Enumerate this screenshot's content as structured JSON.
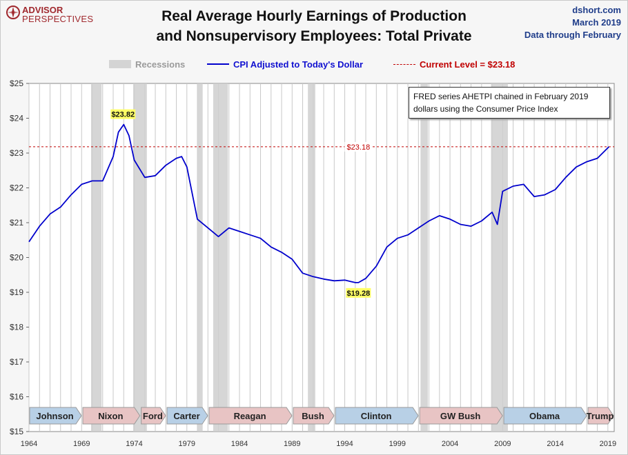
{
  "header": {
    "logo_line1": "ADVISOR",
    "logo_line2": "PERSPECTIVES",
    "title_line1": "Real Average Hourly Earnings of Production",
    "title_line2": "and Nonsupervisory Employees: Total Private",
    "source_line1": "dshort.com",
    "source_line2": "March 2019",
    "source_line3": "Data through February"
  },
  "legend": {
    "recessions": "Recessions",
    "cpi": "CPI Adjusted to Today's Dollar",
    "current": "Current Level = $23.18"
  },
  "note": "FRED series AHETPI chained in February 2019  dollars using the Consumer Price Index",
  "colors": {
    "line": "#0000cc",
    "recession": "#cfcfcf",
    "current": "#c00000",
    "pres_dem": "#b8d0e6",
    "pres_rep": "#e8c4c4"
  },
  "chart_data": {
    "type": "line",
    "title": "Real Average Hourly Earnings of Production and Nonsupervisory Employees: Total Private",
    "xlim": [
      1964,
      2019.6
    ],
    "ylim": [
      15,
      25
    ],
    "x_ticks": [
      1964,
      1969,
      1974,
      1979,
      1984,
      1989,
      1994,
      1999,
      2004,
      2009,
      2014,
      2019
    ],
    "x_tick_labels": [
      "1964",
      "1969",
      "1974",
      "1979",
      "1984",
      "1989",
      "1994",
      "1999",
      "2004",
      "2009",
      "2014",
      "2019"
    ],
    "y_ticks": [
      15,
      16,
      17,
      18,
      19,
      20,
      21,
      22,
      23,
      24,
      25
    ],
    "y_tick_labels": [
      "$15",
      "$16",
      "$17",
      "$18",
      "$19",
      "$20",
      "$21",
      "$22",
      "$23",
      "$24",
      "$25"
    ],
    "grid": "vertical yearly lines",
    "legend_position": "top",
    "series": [
      {
        "name": "CPI Adjusted to Today's Dollar",
        "x": [
          1964.0,
          1965.0,
          1966.0,
          1967.0,
          1968.0,
          1969.0,
          1970.0,
          1971.0,
          1972.0,
          1972.5,
          1973.0,
          1973.5,
          1974.0,
          1975.0,
          1976.0,
          1977.0,
          1978.0,
          1978.5,
          1979.0,
          1980.0,
          1981.0,
          1982.0,
          1983.0,
          1984.0,
          1985.0,
          1986.0,
          1987.0,
          1988.0,
          1989.0,
          1990.0,
          1991.0,
          1992.0,
          1993.0,
          1994.0,
          1995.0,
          1995.3,
          1996.0,
          1997.0,
          1998.0,
          1999.0,
          2000.0,
          2001.0,
          2002.0,
          2003.0,
          2004.0,
          2005.0,
          2006.0,
          2007.0,
          2008.0,
          2008.5,
          2009.0,
          2010.0,
          2011.0,
          2012.0,
          2013.0,
          2014.0,
          2015.0,
          2016.0,
          2017.0,
          2018.0,
          2019.1
        ],
        "y": [
          20.45,
          20.9,
          21.25,
          21.45,
          21.8,
          22.1,
          22.2,
          22.2,
          22.9,
          23.6,
          23.82,
          23.5,
          22.8,
          22.3,
          22.35,
          22.65,
          22.85,
          22.9,
          22.6,
          21.1,
          20.85,
          20.6,
          20.85,
          20.75,
          20.65,
          20.55,
          20.3,
          20.15,
          19.95,
          19.55,
          19.45,
          19.38,
          19.33,
          19.35,
          19.28,
          19.28,
          19.4,
          19.75,
          20.3,
          20.55,
          20.65,
          20.85,
          21.05,
          21.2,
          21.1,
          20.95,
          20.9,
          21.05,
          21.3,
          20.95,
          21.9,
          22.05,
          22.1,
          21.75,
          21.8,
          21.95,
          22.3,
          22.6,
          22.75,
          22.85,
          23.18
        ]
      }
    ],
    "annotations": [
      {
        "label": "$23.82",
        "x": 1973.0,
        "y": 23.82
      },
      {
        "label": "$19.28",
        "x": 1995.3,
        "y": 19.28
      },
      {
        "label": "$23.18",
        "x": 1995.3,
        "y": 23.18
      }
    ],
    "current_level": 23.18,
    "recessions": [
      [
        1969.9,
        1970.9
      ],
      [
        1973.9,
        1975.2
      ],
      [
        1980.0,
        1980.5
      ],
      [
        1981.5,
        1982.9
      ],
      [
        1990.5,
        1991.2
      ],
      [
        2001.2,
        2001.9
      ],
      [
        2007.9,
        2009.5
      ]
    ],
    "presidents": [
      {
        "name": "Johnson",
        "start": 1964.0,
        "end": 1969.05,
        "party": "dem"
      },
      {
        "name": "Nixon",
        "start": 1969.05,
        "end": 1974.6,
        "party": "rep"
      },
      {
        "name": "Ford",
        "start": 1974.6,
        "end": 1977.05,
        "party": "rep"
      },
      {
        "name": "Carter",
        "start": 1977.05,
        "end": 1981.05,
        "party": "dem"
      },
      {
        "name": "Reagan",
        "start": 1981.05,
        "end": 1989.05,
        "party": "rep"
      },
      {
        "name": "Bush",
        "start": 1989.05,
        "end": 1993.05,
        "party": "rep"
      },
      {
        "name": "Clinton",
        "start": 1993.05,
        "end": 2001.05,
        "party": "dem"
      },
      {
        "name": "GW Bush",
        "start": 2001.05,
        "end": 2009.05,
        "party": "rep"
      },
      {
        "name": "Obama",
        "start": 2009.05,
        "end": 2017.05,
        "party": "dem"
      },
      {
        "name": "Trump",
        "start": 2017.05,
        "end": 2019.6,
        "party": "rep"
      }
    ]
  }
}
